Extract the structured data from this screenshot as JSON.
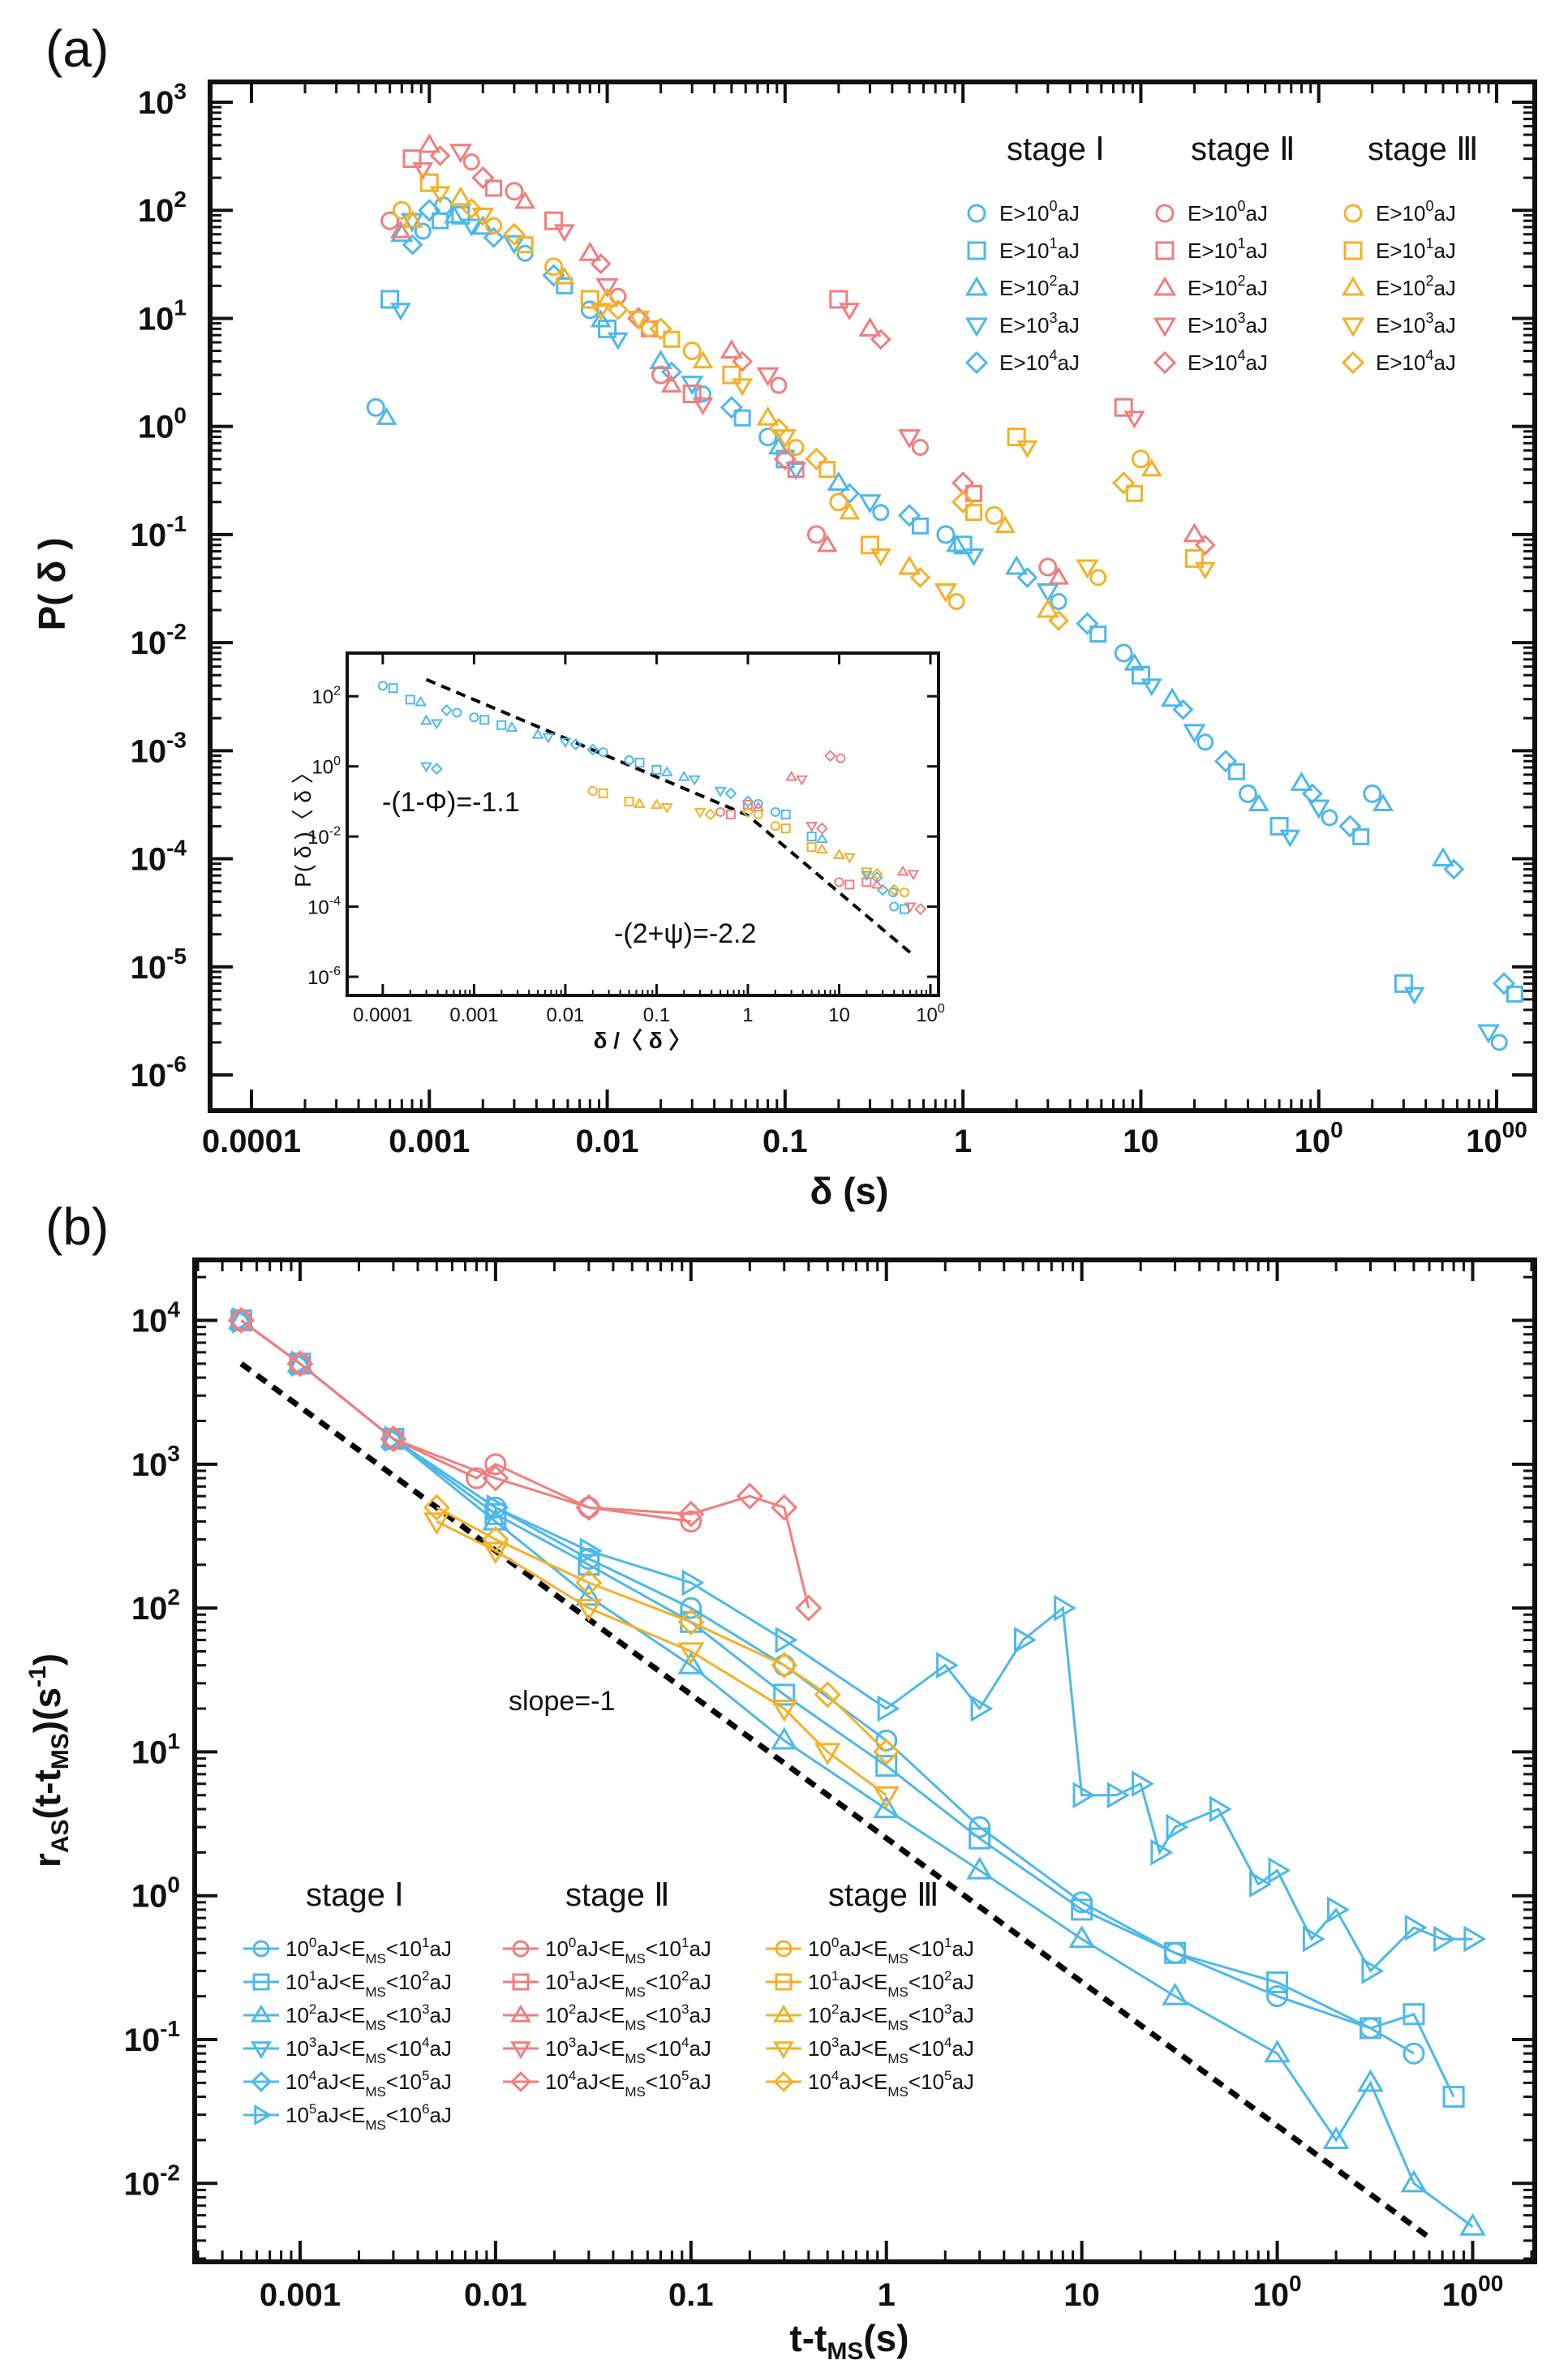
{
  "colors": {
    "stage1": "#4db8ea",
    "stage2": "#f07e7e",
    "stage3": "#f4b128",
    "axis": "#111111",
    "fit": "#000000"
  },
  "chart_data": [
    {
      "panel": "(a)",
      "type": "scatter",
      "xscale": "log",
      "yscale": "log",
      "xlim": [
        0.0001,
        1000
      ],
      "ylim": [
        1e-06,
        1000
      ],
      "xlabel": "δ (s)",
      "ylabel": "P( δ )",
      "xticks": [
        "0.0001",
        "0.001",
        "0.01",
        "0.1",
        "1",
        "10",
        "100",
        "1000"
      ],
      "yticks": [
        "10-6",
        "10-5",
        "10-4",
        "10-3",
        "10-2",
        "10-1",
        "100",
        "101",
        "102",
        "103"
      ],
      "legend": {
        "placement": "top-right",
        "headers": [
          "stage Ⅰ",
          "stage Ⅱ",
          "stage Ⅲ"
        ],
        "entries": [
          {
            "label": "E>100aJ",
            "base": "E>10",
            "exp": "0",
            "unit": "aJ",
            "marker": "circle"
          },
          {
            "label": "E>101aJ",
            "base": "E>10",
            "exp": "1",
            "unit": "aJ",
            "marker": "square"
          },
          {
            "label": "E>102aJ",
            "base": "E>10",
            "exp": "2",
            "unit": "aJ",
            "marker": "triangle-up"
          },
          {
            "label": "E>103aJ",
            "base": "E>10",
            "exp": "3",
            "unit": "aJ",
            "marker": "triangle-down"
          },
          {
            "label": "E>104aJ",
            "base": "E>10",
            "exp": "4",
            "unit": "aJ",
            "marker": "diamond"
          }
        ]
      },
      "series": [
        {
          "name": "stage Ⅰ (all thresholds)",
          "stage": 1,
          "points": [
            [
              0.0005,
              1.5
            ],
            [
              0.0006,
              15
            ],
            [
              0.0007,
              60
            ],
            [
              0.0008,
              80
            ],
            [
              0.001,
              100
            ],
            [
              0.0012,
              110
            ],
            [
              0.0015,
              90
            ],
            [
              0.002,
              70
            ],
            [
              0.003,
              50
            ],
            [
              0.005,
              25
            ],
            [
              0.008,
              12
            ],
            [
              0.01,
              8
            ],
            [
              0.02,
              4
            ],
            [
              0.03,
              2.5
            ],
            [
              0.05,
              1.5
            ],
            [
              0.08,
              0.8
            ],
            [
              0.1,
              0.5
            ],
            [
              0.2,
              0.3
            ],
            [
              0.3,
              0.2
            ],
            [
              0.5,
              0.15
            ],
            [
              0.8,
              0.1
            ],
            [
              1,
              0.08
            ],
            [
              2,
              0.05
            ],
            [
              3,
              0.03
            ],
            [
              5,
              0.015
            ],
            [
              8,
              0.008
            ],
            [
              10,
              0.005
            ],
            [
              15,
              0.003
            ],
            [
              20,
              0.0015
            ],
            [
              30,
              0.0008
            ],
            [
              40,
              0.0004
            ],
            [
              60,
              0.0002
            ],
            [
              80,
              0.0005
            ],
            [
              100,
              0.0003
            ],
            [
              150,
              0.0002
            ],
            [
              200,
              0.0004
            ],
            [
              300,
              7e-06
            ],
            [
              500,
              0.0001
            ],
            [
              900,
              2.5e-06
            ],
            [
              1100,
              7e-06
            ]
          ]
        },
        {
          "name": "stage Ⅱ (all thresholds)",
          "stage": 2,
          "points": [
            [
              0.0006,
              80
            ],
            [
              0.0008,
              300
            ],
            [
              0.001,
              400
            ],
            [
              0.0015,
              350
            ],
            [
              0.002,
              200
            ],
            [
              0.003,
              150
            ],
            [
              0.005,
              80
            ],
            [
              0.008,
              40
            ],
            [
              0.01,
              20
            ],
            [
              0.015,
              10
            ],
            [
              0.02,
              3
            ],
            [
              0.03,
              2
            ],
            [
              0.05,
              5
            ],
            [
              0.08,
              3
            ],
            [
              0.1,
              0.5
            ],
            [
              0.15,
              0.1
            ],
            [
              0.2,
              15
            ],
            [
              0.3,
              8
            ],
            [
              0.5,
              0.8
            ],
            [
              1,
              0.3
            ],
            [
              3,
              0.05
            ],
            [
              8,
              1.5
            ],
            [
              20,
              0.1
            ]
          ]
        },
        {
          "name": "stage Ⅲ (all thresholds)",
          "stage": 3,
          "points": [
            [
              0.0007,
              100
            ],
            [
              0.001,
              180
            ],
            [
              0.0015,
              130
            ],
            [
              0.002,
              90
            ],
            [
              0.003,
              60
            ],
            [
              0.005,
              30
            ],
            [
              0.008,
              15
            ],
            [
              0.01,
              15
            ],
            [
              0.015,
              10
            ],
            [
              0.02,
              8
            ],
            [
              0.03,
              5
            ],
            [
              0.05,
              3
            ],
            [
              0.08,
              1.2
            ],
            [
              0.1,
              0.8
            ],
            [
              0.15,
              0.5
            ],
            [
              0.2,
              0.2
            ],
            [
              0.3,
              0.08
            ],
            [
              0.5,
              0.05
            ],
            [
              0.8,
              0.03
            ],
            [
              1,
              0.2
            ],
            [
              1.5,
              0.15
            ],
            [
              2,
              0.8
            ],
            [
              3,
              0.02
            ],
            [
              5,
              0.05
            ],
            [
              8,
              0.3
            ],
            [
              10,
              0.5
            ],
            [
              20,
              0.06
            ]
          ]
        }
      ],
      "inset": {
        "xlabel": "δ /〈 δ 〉",
        "ylabel": "P( δ )〈 δ 〉",
        "xticks": [
          "0.0001",
          "0.001",
          "0.01",
          "0.1",
          "1",
          "10",
          "100"
        ],
        "yticks": [
          "10-6",
          "10-4",
          "10-2",
          "100",
          "102"
        ],
        "xlim": [
          5e-05,
          100
        ],
        "ylim": [
          5e-07,
          1000
        ],
        "annotations": [
          "-(1-Φ)=-1.1",
          "-(2+ψ)=-2.2"
        ],
        "fit": {
          "breakpoint_x": 1,
          "slope_low": -1.1,
          "slope_high": -2.2,
          "x_start": 0.0003,
          "x_end": 60,
          "y_at_break": 0.04
        },
        "points_stage1": [
          [
            0.0001,
            200
          ],
          [
            0.0002,
            80
          ],
          [
            0.0003,
            20
          ],
          [
            0.0003,
            1
          ],
          [
            0.0005,
            40
          ],
          [
            0.001,
            25
          ],
          [
            0.002,
            15
          ],
          [
            0.005,
            8
          ],
          [
            0.01,
            5
          ],
          [
            0.02,
            3
          ],
          [
            0.05,
            1.5
          ],
          [
            0.1,
            0.8
          ],
          [
            0.2,
            0.5
          ],
          [
            0.5,
            0.2
          ],
          [
            1,
            0.1
          ],
          [
            2,
            0.05
          ],
          [
            5,
            0.01
          ],
          [
            10,
            0.003
          ],
          [
            20,
            0.0008
          ],
          [
            30,
            0.0003
          ],
          [
            40,
            0.0001
          ]
        ],
        "points_stage2": [
          [
            0.5,
            0.05
          ],
          [
            1,
            0.08
          ],
          [
            3,
            0.5
          ],
          [
            5,
            0.02
          ],
          [
            8,
            2
          ],
          [
            10,
            0.0005
          ],
          [
            20,
            0.0005
          ],
          [
            50,
            0.001
          ],
          [
            60,
            0.0001
          ]
        ],
        "points_stage3": [
          [
            0.02,
            0.2
          ],
          [
            0.05,
            0.1
          ],
          [
            0.1,
            0.08
          ],
          [
            0.3,
            0.05
          ],
          [
            1,
            0.05
          ],
          [
            2,
            0.02
          ],
          [
            5,
            0.005
          ],
          [
            10,
            0.003
          ],
          [
            20,
            0.001
          ],
          [
            40,
            0.0003
          ]
        ]
      }
    },
    {
      "panel": "(b)",
      "type": "line",
      "xscale": "log",
      "yscale": "log",
      "xlim": [
        0.0003,
        2000
      ],
      "ylim": [
        0.003,
        25000
      ],
      "xlabel": "t-tMS(s)",
      "ylabel": "rAS(t-tMS)(s-1)",
      "xticks": [
        "0.001",
        "0.01",
        "0.1",
        "1",
        "10",
        "100",
        "1000"
      ],
      "yticks": [
        "10-2",
        "10-1",
        "100",
        "101",
        "102",
        "103",
        "104"
      ],
      "annotation": "slope=-1",
      "reference_line": {
        "slope": -1,
        "x0": 0.0005,
        "y0": 5000,
        "x1": 600,
        "y1": 0.0042
      },
      "legend": {
        "placement": "bottom-left",
        "headers": [
          "stage Ⅰ",
          "stage Ⅱ",
          "stage Ⅲ"
        ],
        "stage1_labels": [
          "100aJ<EMS<101aJ",
          "101aJ<EMS<102aJ",
          "102aJ<EMS<103aJ",
          "103aJ<EMS<104aJ",
          "104aJ<EMS<105aJ",
          "105aJ<EMS<106aJ"
        ],
        "stage2_labels": [
          "100aJ<EMS<101aJ",
          "101aJ<EMS<102aJ",
          "102aJ<EMS<103aJ",
          "103aJ<EMS<104aJ",
          "104aJ<EMS<105aJ"
        ],
        "stage3_labels": [
          "100aJ<EMS<101aJ",
          "101aJ<EMS<102aJ",
          "102aJ<EMS<103aJ",
          "103aJ<EMS<104aJ",
          "104aJ<EMS<105aJ"
        ],
        "markers": [
          "circle",
          "square",
          "triangle-up",
          "triangle-down",
          "diamond",
          "triangle-right"
        ]
      },
      "series": [
        {
          "name": "stage Ⅰ 105aJ<EMS<106aJ",
          "stage": 1,
          "marker": "triangle-right",
          "x": [
            0.0005,
            0.001,
            0.003,
            0.01,
            0.03,
            0.1,
            0.3,
            1,
            2,
            3,
            5,
            8,
            10,
            15,
            20,
            25,
            30,
            50,
            80,
            100,
            150,
            200,
            300,
            500,
            700,
            1000
          ],
          "y": [
            10000,
            5000,
            1500,
            500,
            250,
            150,
            60,
            20,
            40,
            20,
            60,
            100,
            5,
            5,
            6,
            2,
            3,
            4,
            1.2,
            1.5,
            0.5,
            0.8,
            0.3,
            0.6,
            0.5,
            0.5
          ]
        },
        {
          "name": "stage Ⅰ 102aJ<EMS<103aJ",
          "stage": 1,
          "marker": "triangle-up",
          "x": [
            0.0005,
            0.001,
            0.003,
            0.01,
            0.03,
            0.1,
            0.3,
            1,
            3,
            10,
            30,
            100,
            200,
            300,
            500,
            1000
          ],
          "y": [
            10000,
            5000,
            1500,
            400,
            120,
            40,
            12,
            4,
            1.5,
            0.5,
            0.2,
            0.08,
            0.02,
            0.05,
            0.01,
            0.005
          ]
        },
        {
          "name": "stage Ⅰ 101aJ<EMS<102aJ",
          "stage": 1,
          "marker": "square",
          "x": [
            0.0005,
            0.001,
            0.003,
            0.01,
            0.03,
            0.1,
            0.3,
            1,
            3,
            10,
            30,
            100,
            300,
            500,
            800
          ],
          "y": [
            10000,
            5000,
            1500,
            450,
            200,
            80,
            25,
            8,
            2.5,
            0.8,
            0.4,
            0.25,
            0.12,
            0.15,
            0.04
          ]
        },
        {
          "name": "stage Ⅰ 100aJ<EMS<101aJ",
          "stage": 1,
          "marker": "circle",
          "x": [
            0.0005,
            0.001,
            0.003,
            0.01,
            0.03,
            0.1,
            0.3,
            1,
            3,
            10,
            30,
            100,
            300,
            500
          ],
          "y": [
            10000,
            5000,
            1500,
            500,
            220,
            100,
            40,
            12,
            3,
            0.9,
            0.4,
            0.2,
            0.12,
            0.08
          ]
        },
        {
          "name": "stage Ⅱ 104aJ<EMS<105aJ",
          "stage": 2,
          "marker": "diamond",
          "x": [
            0.0005,
            0.001,
            0.003,
            0.01,
            0.03,
            0.1,
            0.2,
            0.3,
            0.4
          ],
          "y": [
            10000,
            5000,
            1500,
            800,
            500,
            450,
            600,
            500,
            100
          ]
        },
        {
          "name": "stage Ⅱ 100aJ<EMS<101aJ",
          "stage": 2,
          "marker": "circle",
          "x": [
            0.0005,
            0.001,
            0.003,
            0.008,
            0.01,
            0.03,
            0.1
          ],
          "y": [
            10000,
            5000,
            1500,
            800,
            1000,
            500,
            400
          ]
        },
        {
          "name": "stage Ⅲ 100aJ<EMS<101aJ",
          "stage": 3,
          "marker": "diamond",
          "x": [
            0.005,
            0.01,
            0.03,
            0.1,
            0.3,
            0.5,
            1
          ],
          "y": [
            500,
            300,
            150,
            80,
            40,
            25,
            10
          ]
        },
        {
          "name": "stage Ⅲ 101aJ<EMS<102aJ",
          "stage": 3,
          "marker": "triangle-down",
          "x": [
            0.005,
            0.01,
            0.03,
            0.1,
            0.3,
            0.5,
            1
          ],
          "y": [
            400,
            250,
            100,
            50,
            20,
            10,
            5
          ]
        }
      ]
    }
  ]
}
